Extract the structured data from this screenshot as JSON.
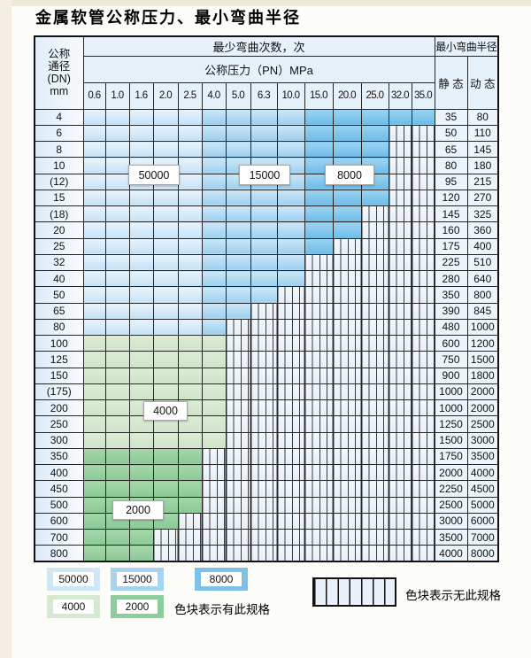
{
  "title": "金属软管公称压力、最小弯曲半径",
  "table": {
    "header": {
      "dn_lines": [
        "公称",
        "通径",
        "(DN)",
        "mm"
      ],
      "bend_cycles": "最少弯曲次数，次",
      "pressure": "公称压力（PN）MPa",
      "pressure_cols": [
        "0.6",
        "1.0",
        "1.6",
        "2.0",
        "2.5",
        "4.0",
        "5.0",
        "6.3",
        "10.0",
        "15.0",
        "20.0",
        "25.0",
        "32.0",
        "35.0"
      ],
      "radius": "最小弯曲半径",
      "static": "静 态",
      "dynamic": "动 态"
    },
    "blue_zones": {
      "cycles_50000_last_col": "2.5",
      "cycles_15000_last_col": "10.0",
      "cycles_8000_last_col": "35.0"
    },
    "rows": [
      {
        "dn": "4",
        "static": "35",
        "dynamic": "80",
        "spec_max_pn": "35.0",
        "zone": "blue"
      },
      {
        "dn": "6",
        "static": "50",
        "dynamic": "110",
        "spec_max_pn": "25.0",
        "zone": "blue"
      },
      {
        "dn": "8",
        "static": "65",
        "dynamic": "145",
        "spec_max_pn": "25.0",
        "zone": "blue"
      },
      {
        "dn": "10",
        "static": "80",
        "dynamic": "180",
        "spec_max_pn": "25.0",
        "zone": "blue"
      },
      {
        "dn": "(12)",
        "static": "95",
        "dynamic": "215",
        "spec_max_pn": "25.0",
        "zone": "blue"
      },
      {
        "dn": "15",
        "static": "120",
        "dynamic": "270",
        "spec_max_pn": "25.0",
        "zone": "blue"
      },
      {
        "dn": "(18)",
        "static": "145",
        "dynamic": "325",
        "spec_max_pn": "20.0",
        "zone": "blue"
      },
      {
        "dn": "20",
        "static": "160",
        "dynamic": "360",
        "spec_max_pn": "20.0",
        "zone": "blue"
      },
      {
        "dn": "25",
        "static": "175",
        "dynamic": "400",
        "spec_max_pn": "15.0",
        "zone": "blue"
      },
      {
        "dn": "32",
        "static": "225",
        "dynamic": "510",
        "spec_max_pn": "10.0",
        "zone": "blue"
      },
      {
        "dn": "40",
        "static": "280",
        "dynamic": "640",
        "spec_max_pn": "10.0",
        "zone": "blue"
      },
      {
        "dn": "50",
        "static": "350",
        "dynamic": "800",
        "spec_max_pn": "6.3",
        "zone": "blue"
      },
      {
        "dn": "65",
        "static": "390",
        "dynamic": "845",
        "spec_max_pn": "5.0",
        "zone": "blue"
      },
      {
        "dn": "80",
        "static": "480",
        "dynamic": "1000",
        "spec_max_pn": "4.0",
        "zone": "blue"
      },
      {
        "dn": "100",
        "static": "600",
        "dynamic": "1200",
        "spec_max_pn": "4.0",
        "zone": "green4000"
      },
      {
        "dn": "125",
        "static": "750",
        "dynamic": "1500",
        "spec_max_pn": "4.0",
        "zone": "green4000"
      },
      {
        "dn": "150",
        "static": "900",
        "dynamic": "1800",
        "spec_max_pn": "4.0",
        "zone": "green4000"
      },
      {
        "dn": "(175)",
        "static": "1000",
        "dynamic": "2000",
        "spec_max_pn": "4.0",
        "zone": "green4000"
      },
      {
        "dn": "200",
        "static": "1000",
        "dynamic": "2000",
        "spec_max_pn": "4.0",
        "zone": "green4000"
      },
      {
        "dn": "250",
        "static": "1250",
        "dynamic": "2500",
        "spec_max_pn": "4.0",
        "zone": "green4000"
      },
      {
        "dn": "300",
        "static": "1500",
        "dynamic": "3000",
        "spec_max_pn": "4.0",
        "zone": "green4000"
      },
      {
        "dn": "350",
        "static": "1750",
        "dynamic": "3500",
        "spec_max_pn": "2.5",
        "zone": "green2000"
      },
      {
        "dn": "400",
        "static": "2000",
        "dynamic": "4000",
        "spec_max_pn": "2.5",
        "zone": "green2000"
      },
      {
        "dn": "450",
        "static": "2250",
        "dynamic": "4500",
        "spec_max_pn": "2.5",
        "zone": "green2000"
      },
      {
        "dn": "500",
        "static": "2500",
        "dynamic": "5000",
        "spec_max_pn": "2.5",
        "zone": "green2000"
      },
      {
        "dn": "600",
        "static": "3000",
        "dynamic": "6000",
        "spec_max_pn": "2.0",
        "zone": "green2000"
      },
      {
        "dn": "700",
        "static": "3500",
        "dynamic": "7000",
        "spec_max_pn": "1.6",
        "zone": "green2000"
      },
      {
        "dn": "800",
        "static": "4000",
        "dynamic": "8000",
        "spec_max_pn": "1.6",
        "zone": "green2000"
      }
    ]
  },
  "overlay_labels": [
    {
      "text": "50000"
    },
    {
      "text": "15000"
    },
    {
      "text": "8000"
    },
    {
      "text": "4000"
    },
    {
      "text": "2000"
    }
  ],
  "legend": {
    "items": [
      {
        "label": "50000",
        "color": "#cfe6f7"
      },
      {
        "label": "15000",
        "color": "#a6d3f0"
      },
      {
        "label": "8000",
        "color": "#7dc1e9"
      },
      {
        "label": "4000",
        "color": "#d5e9d0"
      },
      {
        "label": "2000",
        "color": "#8bce9c"
      }
    ],
    "has_spec_text": "色块表示有此规格",
    "no_spec_text": "色块表示无此规格"
  },
  "colors": {
    "cycles_50000": "#c5e2f6",
    "cycles_15000": "#9dd0ef",
    "cycles_8000": "#6cbde9",
    "cycles_4000": "#cfe4c9",
    "cycles_2000": "#8bc997",
    "no_spec_bg": "#e9f1fa",
    "border": "#252525",
    "scan_edge": "#efe8d5"
  }
}
